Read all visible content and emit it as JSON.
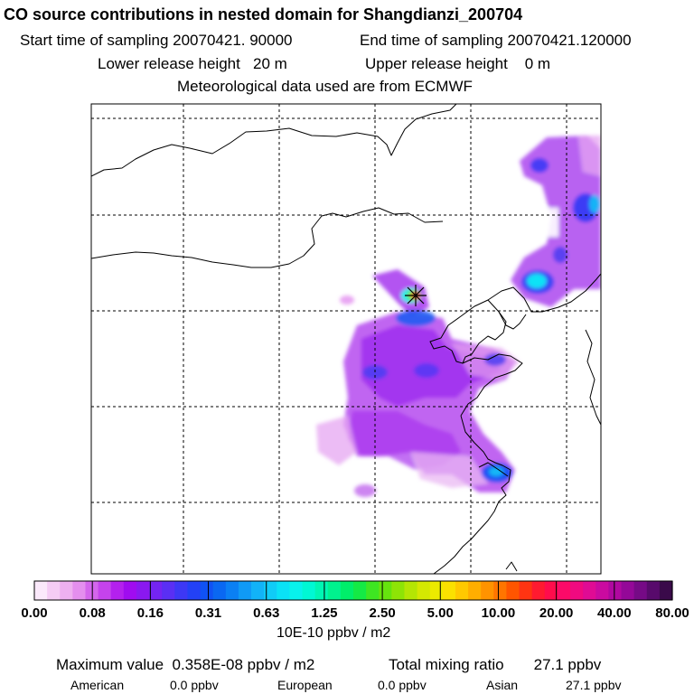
{
  "header": {
    "title": "CO  source contributions in nested domain for Shangdianzi_200704",
    "start_label": "Start time of sampling",
    "start_value": "20070421. 90000",
    "end_label": "End time of sampling",
    "end_value": "20070421.120000",
    "lower_label": "Lower release height",
    "lower_value": "20 m",
    "upper_label": "Upper release height",
    "upper_value": "0 m",
    "met_line": "Meteorological data used are from ECMWF"
  },
  "colorbar": {
    "ticks": [
      "0.00",
      "0.08",
      "0.16",
      "0.31",
      "0.63",
      "1.25",
      "2.50",
      "5.00",
      "10.00",
      "20.00",
      "40.00",
      "80.00"
    ],
    "unit": "10E-10 ppbv / m2",
    "colors": [
      "#fbe9fb",
      "#f5ccf5",
      "#eeb0f0",
      "#e48fee",
      "#d466ec",
      "#c543ec",
      "#b421ee",
      "#a00cf0",
      "#8a18f0",
      "#7424f2",
      "#5a2ff4",
      "#3d38f5",
      "#2341f6",
      "#1052f4",
      "#0a68f2",
      "#0b80f4",
      "#109af6",
      "#12b3f7",
      "#10ccf7",
      "#0ae2f6",
      "#08f2ec",
      "#00f8d4",
      "#00f6b3",
      "#00f28e",
      "#00ee6a",
      "#14ea45",
      "#3ee622",
      "#66e40e",
      "#8ee406",
      "#b4e604",
      "#d4e802",
      "#ecea00",
      "#fae100",
      "#ffc900",
      "#ffae00",
      "#ff9300",
      "#ff7500",
      "#ff5500",
      "#ff3412",
      "#ff1a30",
      "#ff0c4c",
      "#fc0a68",
      "#f00a80",
      "#e00b94",
      "#ca0aa0",
      "#b008a0",
      "#940898",
      "#760a86",
      "#580a6c",
      "#3a0a4a"
    ]
  },
  "footer": {
    "max_label": "Maximum value",
    "max_value": "0.358E-08 ppbv / m2",
    "total_label": "Total mixing ratio",
    "total_value": "27.1 ppbv",
    "regions": [
      {
        "name": "American",
        "value": "0.0 ppbv"
      },
      {
        "name": "European",
        "value": "0.0 ppbv"
      },
      {
        "name": "Asian",
        "value": "27.1 ppbv"
      }
    ]
  }
}
